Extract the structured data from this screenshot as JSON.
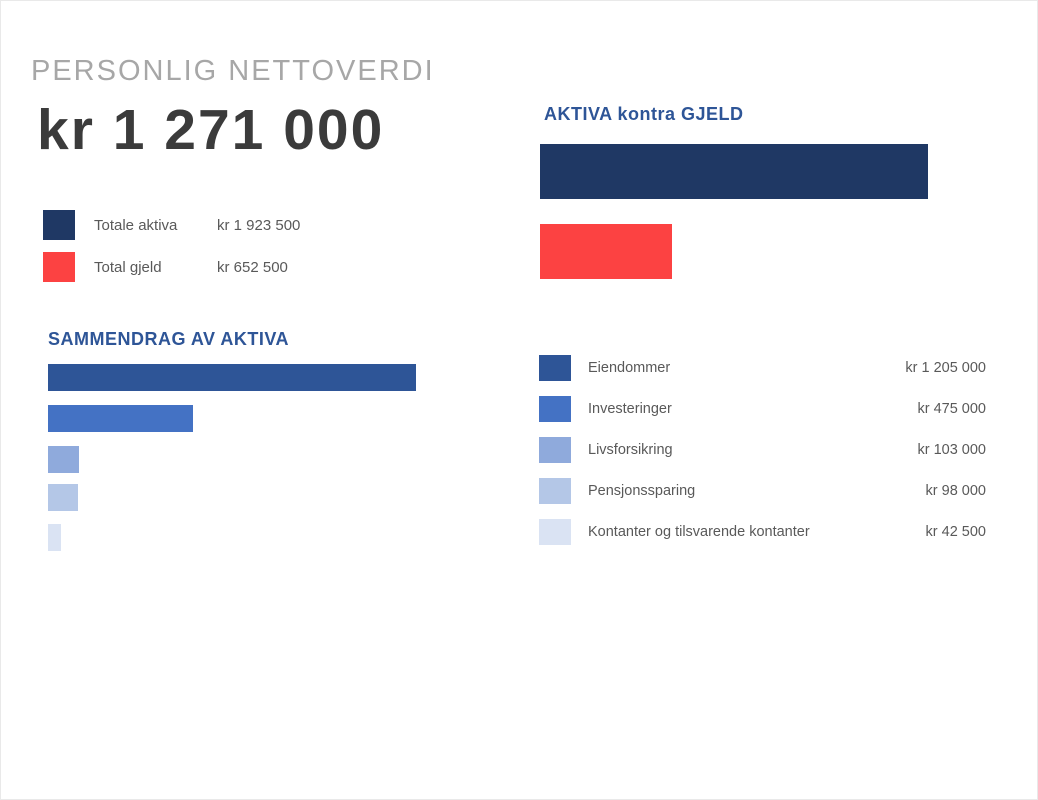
{
  "header": {
    "title": "PERSONLIG NETTOVERDI",
    "net_worth": "kr 1 271 000"
  },
  "colors": {
    "accent_heading_blue": "#2e5597",
    "title_gray": "#a7a7a7",
    "net_worth_dark": "#3b3b3b",
    "label_gray": "#595959",
    "navy": "#1f3864",
    "red": "#fc4242",
    "blue_dark": "#2e5597",
    "blue_medium": "#4472c4",
    "blue_light": "#8faadc",
    "blue_lighter": "#b4c7e7",
    "blue_lightest": "#dae3f3"
  },
  "chart_data": [
    {
      "type": "bar",
      "orientation": "horizontal",
      "title": "AKTIVA kontra GJELD",
      "categories": [
        "Totale aktiva",
        "Total gjeld"
      ],
      "values": [
        1923500,
        652500
      ],
      "labels": [
        "kr 1 923 500",
        "kr 652 500"
      ],
      "colors": [
        "#1f3864",
        "#fc4242"
      ],
      "xlim": [
        0,
        1923500
      ],
      "grid": false,
      "value_axis_visible": false,
      "legend_position": "top-left"
    },
    {
      "type": "bar",
      "orientation": "horizontal",
      "title": "SAMMENDRAG AV AKTIVA",
      "categories": [
        "Eiendommer",
        "Investeringer",
        "Livsforsikring",
        "Pensjonssparing",
        "Kontanter og tilsvarende kontanter"
      ],
      "values": [
        1205000,
        475000,
        103000,
        98000,
        42500
      ],
      "labels": [
        "kr 1 205 000",
        "kr 475 000",
        "kr 103 000",
        "kr 98 000",
        "kr 42 500"
      ],
      "colors": [
        "#2e5597",
        "#4472c4",
        "#8faadc",
        "#b4c7e7",
        "#dae3f3"
      ],
      "xlim": [
        0,
        1205000
      ],
      "grid": false,
      "value_axis_visible": false,
      "legend_position": "right"
    }
  ]
}
